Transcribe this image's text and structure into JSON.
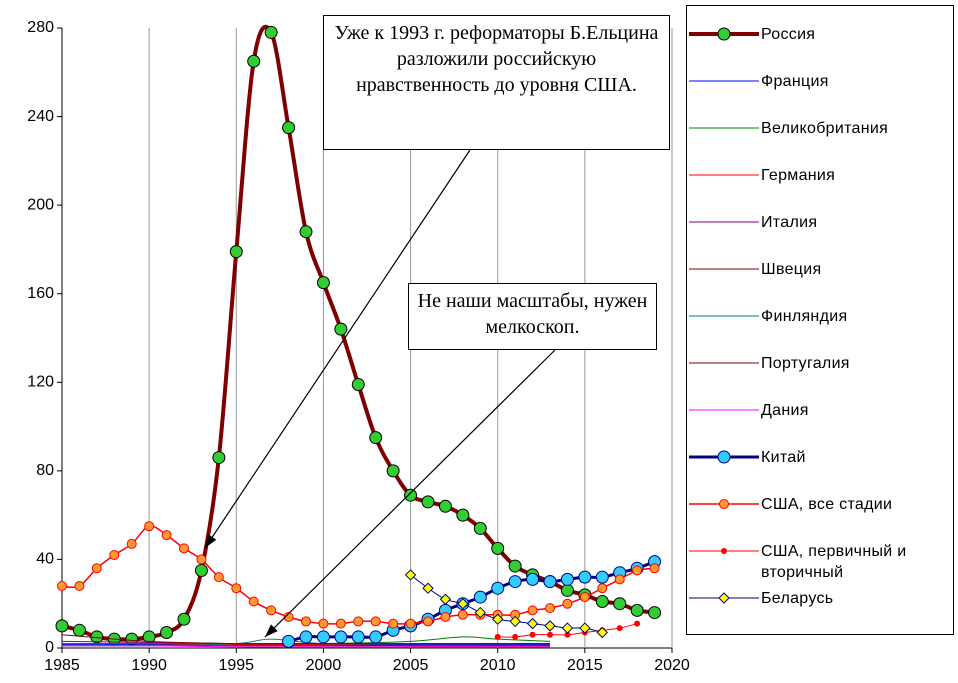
{
  "chart_data": {
    "type": "line",
    "xlim": [
      1985,
      2020
    ],
    "xticks": [
      1985,
      1990,
      1995,
      2000,
      2005,
      2010,
      2015,
      2020
    ],
    "ylim": [
      0,
      280
    ],
    "yticks": [
      0,
      40,
      80,
      120,
      160,
      200,
      240,
      280
    ],
    "grid": "x",
    "legend": "right",
    "annotations": [
      "Уже к 1993 г. реформаторы Б.Ельцина разложили российскую нравственность до уровня США.",
      "Не наши масштабы, нужен мелкоскоп."
    ],
    "series": [
      {
        "name": "Россия",
        "color": "#800000",
        "marker": "circle",
        "marker_color": "#33cc33",
        "line_width": 4,
        "x": [
          1985,
          1986,
          1987,
          1988,
          1989,
          1990,
          1991,
          1992,
          1993,
          1994,
          1995,
          1996,
          1997,
          1998,
          1999,
          2000,
          2001,
          2002,
          2003,
          2004,
          2005,
          2006,
          2007,
          2008,
          2009,
          2010,
          2011,
          2012,
          2013,
          2014,
          2015,
          2016,
          2017,
          2018,
          2019
        ],
        "values": [
          10,
          8,
          5,
          4,
          4,
          5,
          7,
          13,
          35,
          86,
          179,
          265,
          278,
          235,
          188,
          165,
          144,
          119,
          95,
          80,
          69,
          66,
          64,
          60,
          54,
          45,
          37,
          33,
          30,
          26,
          24,
          21,
          20,
          17,
          16
        ]
      },
      {
        "name": "Франция",
        "color": "#0000ff",
        "line_width": 1,
        "x": [
          1985,
          1990,
          1995,
          2000,
          2005,
          2010,
          2013
        ],
        "values": [
          1.5,
          1.5,
          1.5,
          1.5,
          1.5,
          1.5,
          1.5
        ]
      },
      {
        "name": "Великобритания",
        "color": "#008000",
        "line_width": 1,
        "x": [
          1985,
          1990,
          1995,
          2000,
          2005,
          2008,
          2010,
          2013
        ],
        "values": [
          2,
          2,
          2,
          2,
          3,
          5,
          4,
          3
        ]
      },
      {
        "name": "Германия",
        "color": "#ff0000",
        "line_width": 1,
        "x": [
          1985,
          1990,
          1995,
          2000,
          2005,
          2010,
          2013
        ],
        "values": [
          2,
          2,
          1.5,
          1.5,
          1,
          1,
          1
        ]
      },
      {
        "name": "Италия",
        "color": "#800080",
        "line_width": 1,
        "x": [
          1985,
          1990,
          1995,
          2000,
          2005,
          2010,
          2013
        ],
        "values": [
          3,
          2.5,
          2,
          2,
          2,
          2,
          2
        ]
      },
      {
        "name": "Швеция",
        "color": "#800000",
        "line_width": 1,
        "x": [
          1985,
          1990,
          1995,
          2000,
          2005,
          2010,
          2013
        ],
        "values": [
          1,
          1,
          1,
          1,
          1,
          1,
          1
        ]
      },
      {
        "name": "Финляндия",
        "color": "#008080",
        "line_width": 1,
        "x": [
          1985,
          1990,
          1995,
          1997,
          2000,
          2005,
          2010,
          2013
        ],
        "values": [
          1,
          1,
          2,
          4,
          2,
          2,
          2,
          2
        ]
      },
      {
        "name": "Португалия",
        "color": "#800000",
        "line_width": 1,
        "x": [
          1985,
          1990,
          1995,
          2000,
          2005,
          2010,
          2013
        ],
        "values": [
          6,
          3,
          2,
          2,
          2,
          2,
          2
        ]
      },
      {
        "name": "Дания",
        "color": "#ff00ff",
        "line_width": 1,
        "x": [
          1985,
          1990,
          1995,
          2000,
          2005,
          2010,
          2013
        ],
        "values": [
          1,
          1,
          0.5,
          0.5,
          0.5,
          0.5,
          0.5
        ]
      },
      {
        "name": "Китай",
        "color": "#000080",
        "marker": "circle",
        "marker_color": "#33ccff",
        "line_width": 3,
        "x": [
          1998,
          1999,
          2000,
          2001,
          2002,
          2003,
          2004,
          2005,
          2006,
          2007,
          2008,
          2009,
          2010,
          2011,
          2012,
          2013,
          2014,
          2015,
          2016,
          2017,
          2018,
          2019
        ],
        "values": [
          3,
          5,
          5,
          5,
          5,
          5,
          8,
          10,
          13,
          17,
          20,
          23,
          27,
          30,
          31,
          30,
          31,
          32,
          32,
          34,
          36,
          39
        ]
      },
      {
        "name": "США, все стадии",
        "color": "#ff0000",
        "marker": "circle",
        "marker_color": "#ff9933",
        "line_width": 1.5,
        "x": [
          1985,
          1986,
          1987,
          1988,
          1989,
          1990,
          1991,
          1992,
          1993,
          1994,
          1995,
          1996,
          1997,
          1998,
          1999,
          2000,
          2001,
          2002,
          2003,
          2004,
          2005,
          2006,
          2007,
          2008,
          2009,
          2010,
          2011,
          2012,
          2013,
          2014,
          2015,
          2016,
          2017,
          2018,
          2019
        ],
        "values": [
          28,
          28,
          36,
          42,
          47,
          55,
          51,
          45,
          40,
          32,
          27,
          21,
          17,
          14,
          12,
          11,
          11,
          12,
          12,
          11,
          11,
          12,
          14,
          15,
          15,
          15,
          15,
          17,
          18,
          20,
          23,
          27,
          31,
          35,
          36
        ]
      },
      {
        "name": "США, первичный и вторичный",
        "color": "#ff0000",
        "marker": "dot",
        "marker_color": "#ff0000",
        "line_width": 1,
        "x": [
          2010,
          2011,
          2012,
          2013,
          2014,
          2015,
          2016,
          2017,
          2018
        ],
        "values": [
          5,
          5,
          6,
          6,
          6,
          7,
          8,
          9,
          11
        ]
      },
      {
        "name": "Беларусь",
        "color": "#000080",
        "marker": "diamond",
        "marker_color": "#ffff00",
        "line_width": 1,
        "x": [
          2005,
          2006,
          2007,
          2008,
          2009,
          2010,
          2011,
          2012,
          2013,
          2014,
          2015,
          2016
        ],
        "values": [
          33,
          27,
          22,
          20,
          16,
          13,
          12,
          11,
          10,
          9,
          9,
          7
        ]
      }
    ]
  }
}
